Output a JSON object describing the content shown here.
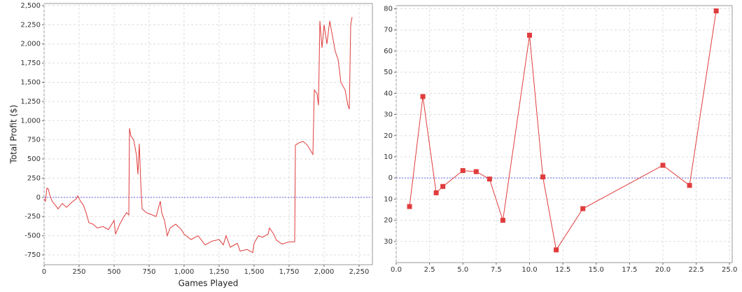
{
  "chart_data": [
    {
      "type": "line",
      "x_label": "Games Played",
      "y_label": "Total Profit ($)",
      "color": "#e03c3c",
      "grid": true,
      "zero_line_color": "#6666ee",
      "xlim": [
        0,
        2345
      ],
      "ylim": [
        -878,
        2527
      ],
      "xticks": [
        0,
        250,
        500,
        750,
        {
          "value": 1000,
          "label": "1,000"
        },
        {
          "value": 1250,
          "label": "1,250"
        },
        {
          "value": 1500,
          "label": "1,500"
        },
        {
          "value": 1750,
          "label": "1,750"
        },
        {
          "value": 2000,
          "label": "2,000"
        },
        {
          "value": 2250,
          "label": "2,250"
        }
      ],
      "yticks": [
        -750,
        -500,
        -250,
        0,
        250,
        500,
        750,
        {
          "value": 1000,
          "label": "1,000"
        },
        {
          "value": 1250,
          "label": "1,250"
        },
        {
          "value": 1500,
          "label": "1,500"
        },
        {
          "value": 1750,
          "label": "1,750"
        },
        {
          "value": 2000,
          "label": "2,000"
        },
        {
          "value": 2250,
          "label": "2,250"
        },
        {
          "value": 2500,
          "label": "2,500"
        }
      ],
      "x": [
        0,
        10,
        20,
        30,
        40,
        60,
        80,
        100,
        130,
        160,
        200,
        230,
        240,
        260,
        280,
        300,
        320,
        350,
        380,
        420,
        460,
        500,
        510,
        540,
        570,
        590,
        605,
        610,
        620,
        640,
        660,
        670,
        680,
        690,
        700,
        730,
        760,
        800,
        830,
        840,
        860,
        880,
        900,
        940,
        980,
        1000,
        1050,
        1100,
        1150,
        1200,
        1250,
        1280,
        1300,
        1330,
        1380,
        1400,
        1450,
        1490,
        1500,
        1530,
        1560,
        1600,
        1610,
        1640,
        1660,
        1700,
        1750,
        1790,
        1795,
        1820,
        1850,
        1880,
        1920,
        1930,
        1950,
        1960,
        1970,
        1985,
        2000,
        2020,
        2040,
        2060,
        2080,
        2100,
        2120,
        2150,
        2170,
        2180,
        2190,
        2200
      ],
      "values": [
        -20,
        -50,
        120,
        110,
        30,
        -60,
        -100,
        -150,
        -80,
        -130,
        -60,
        -20,
        20,
        -50,
        -100,
        -200,
        -330,
        -350,
        -400,
        -380,
        -420,
        -300,
        -480,
        -350,
        -250,
        -200,
        -230,
        900,
        800,
        750,
        550,
        300,
        700,
        200,
        -150,
        -200,
        -220,
        -250,
        -50,
        -200,
        -300,
        -500,
        -400,
        -350,
        -420,
        -480,
        -550,
        -500,
        -620,
        -570,
        -550,
        -620,
        -500,
        -650,
        -600,
        -700,
        -680,
        -720,
        -600,
        -500,
        -520,
        -480,
        -400,
        -480,
        -560,
        -610,
        -580,
        -580,
        680,
        710,
        730,
        680,
        560,
        1400,
        1350,
        1200,
        2300,
        1950,
        2250,
        2000,
        2300,
        2100,
        1900,
        1800,
        1500,
        1400,
        1200,
        1150,
        2250,
        2350
      ]
    },
    {
      "type": "line",
      "marker": "square",
      "color": "#e03c3c",
      "grid": true,
      "zero_line_color": "#6666ee",
      "xlim": [
        0,
        25.2
      ],
      "ylim": [
        -40,
        81.5
      ],
      "xticks": [
        {
          "value": 0,
          "label": "0.0"
        },
        2.5,
        {
          "value": 5,
          "label": "5.0"
        },
        7.5,
        {
          "value": 10,
          "label": "10.0"
        },
        12.5,
        {
          "value": 15,
          "label": "15.0"
        },
        17.5,
        {
          "value": 20,
          "label": "20.0"
        },
        22.5,
        {
          "value": 25,
          "label": "25.0"
        }
      ],
      "yticks": [
        {
          "value": -30,
          "label": "30"
        },
        {
          "value": -20,
          "label": "20"
        },
        {
          "value": -10,
          "label": "10"
        },
        0,
        10,
        20,
        30,
        40,
        50,
        60,
        70,
        80
      ],
      "x": [
        1,
        2,
        3,
        3.5,
        5,
        6,
        7,
        8,
        10,
        11,
        12,
        14,
        20,
        22,
        24
      ],
      "values": [
        -13.5,
        38.5,
        -7,
        -4,
        3.5,
        3,
        -0.5,
        -20,
        67.5,
        0.5,
        -34,
        -14.5,
        6,
        -3.5,
        79
      ]
    }
  ]
}
